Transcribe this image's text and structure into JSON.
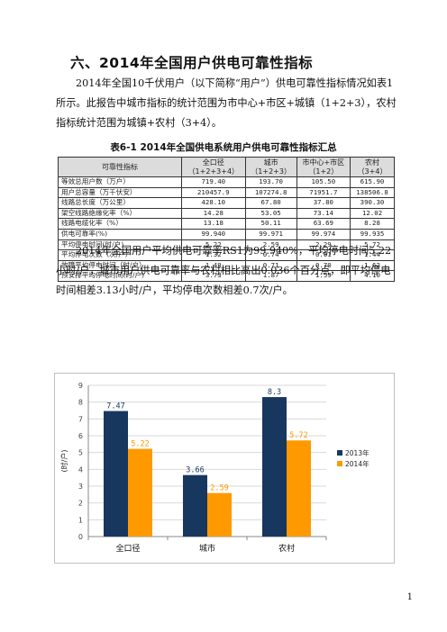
{
  "section": {
    "heading": "六、2014年全国用户供电可靠性指标"
  },
  "paragraph1": "2014年全国10千伏用户（以下简称“用户”）供电可靠性指标情况如表1所示。此报告中城市指标的统计范围为市中心+市区+城镇（1+2+3），农村指标统计范围为城镇+农村（3+4）。",
  "table": {
    "caption": "表6-1 2014年全国供电系统用户供电可靠性指标汇总",
    "headers": [
      {
        "line1": "可靠性指标",
        "line2": ""
      },
      {
        "line1": "全口径",
        "line2": "（1+2+3+4）"
      },
      {
        "line1": "城市",
        "line2": "（1+2+3）"
      },
      {
        "line1": "市中心+市区",
        "line2": "（1+2）"
      },
      {
        "line1": "农村",
        "line2": "（3+4）"
      }
    ],
    "rows": [
      [
        "等效总用户数（万户）",
        "719.40",
        "193.70",
        "105.50",
        "615.90"
      ],
      [
        "用户总容量（万千伏安）",
        "210457.9",
        "107274.8",
        "71951.7",
        "138506.8"
      ],
      [
        "线路总长度（万公里）",
        "428.10",
        "67.80",
        "37.80",
        "390.30"
      ],
      [
        "架空线路绝缘化率（%）",
        "14.28",
        "53.05",
        "73.14",
        "12.02"
      ],
      [
        "线路电缆化率（%）",
        "13.18",
        "50.11",
        "63.69",
        "8.28"
      ],
      [
        "供电可靠率(%)",
        "99.940",
        "99.971",
        "99.974",
        "99.935"
      ],
      [
        "平均停电时间(时/户)",
        "5.22",
        "2.59",
        "2.29",
        "5.72"
      ],
      [
        "平均停电次数（次/户）",
        "1.32",
        "0.74",
        "0.61",
        "1.44"
      ],
      [
        "故障平均停电时间（时/户）",
        "1.49",
        "0.71",
        "0.70",
        "1.62"
      ],
      [
        "预安排平均停电时间(时/户)",
        "3.73",
        "1.87",
        "1.59",
        "4.10"
      ]
    ]
  },
  "paragraph2": "2014年全国用户平均供电可靠率RS1为99.940%，平均停电时间5.22小时/户，城市用户供电可靠率与农村相比高出0.036个百分点，即平均停电时间相差3.13小时/户，平均停电次数相差0.7次/户。",
  "chart_data": {
    "type": "bar",
    "categories": [
      "全口径",
      "城市",
      "农村"
    ],
    "series": [
      {
        "name": "2013年",
        "values": [
          7.47,
          3.66,
          8.3
        ],
        "labels": [
          "7.47",
          "3.66",
          "8.3"
        ],
        "color": "#17375e"
      },
      {
        "name": "2014年",
        "values": [
          5.22,
          2.59,
          5.72
        ],
        "labels": [
          "5.22",
          "2.59",
          "5.72"
        ],
        "color": "#ff9900"
      }
    ],
    "ylabel": "(时/户)",
    "ylim": [
      0,
      9
    ],
    "yticks": [
      "0",
      "1",
      "2",
      "3",
      "4",
      "5",
      "6",
      "7",
      "8",
      "9"
    ],
    "grid": true,
    "legend": "right"
  },
  "page_number": "1"
}
